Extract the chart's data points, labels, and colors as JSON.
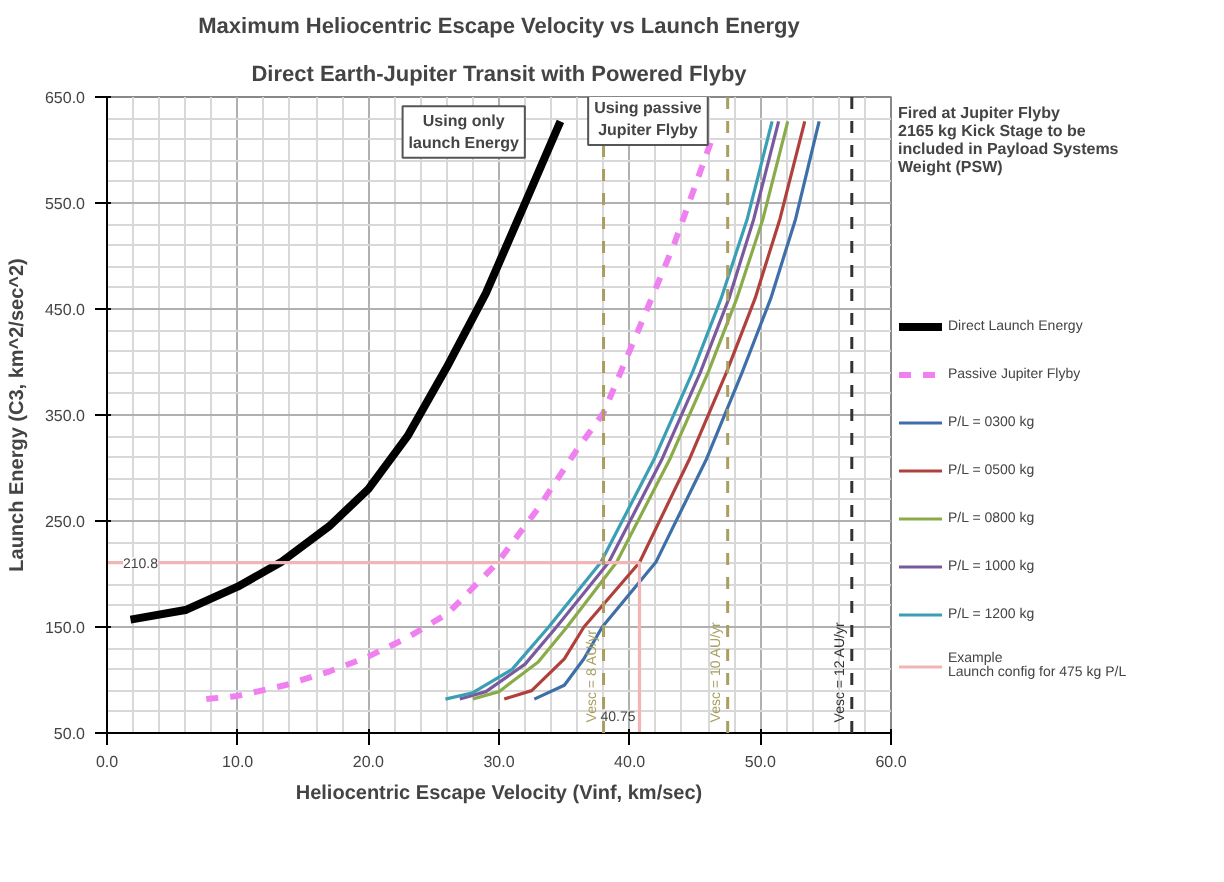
{
  "chart_data": {
    "type": "line",
    "title": "Maximum Heliocentric Escape Velocity vs Launch Energy",
    "subtitle": "Direct Earth-Jupiter Transit with Powered Flyby",
    "xlabel": "Heliocentric Escape Velocity (Vinf, km/sec)",
    "ylabel": "Launch Energy (C3, km^2/sec^2)",
    "xlim": [
      0,
      60
    ],
    "ylim": [
      50,
      650
    ],
    "xticks": [
      {
        "value": 0,
        "label": "0.0"
      },
      {
        "value": 10,
        "label": "10.0"
      },
      {
        "value": 20,
        "label": "20.0"
      },
      {
        "value": 30,
        "label": "30.0"
      },
      {
        "value": 40,
        "label": "40.0"
      },
      {
        "value": 50,
        "label": "50.0"
      },
      {
        "value": 60,
        "label": "60.0"
      }
    ],
    "yticks": [
      {
        "value": 50,
        "label": "50.0"
      },
      {
        "value": 150,
        "label": "150.0"
      },
      {
        "value": 250,
        "label": "250.0"
      },
      {
        "value": 350,
        "label": "350.0"
      },
      {
        "value": 450,
        "label": "450.0"
      },
      {
        "value": 550,
        "label": "550.0"
      },
      {
        "value": 650,
        "label": "650.0"
      }
    ],
    "grid": true,
    "legend": "right",
    "series": [
      {
        "name": "Direct Launch Energy",
        "color": "#000000",
        "x": [
          1.8,
          6,
          10,
          13.3,
          17,
          20,
          23,
          26,
          29,
          32,
          34.7
        ],
        "values": [
          157,
          166,
          188,
          211,
          245,
          280,
          330,
          395,
          465,
          550,
          627
        ]
      },
      {
        "name": "Passive Jupiter Flyby",
        "color": "#f080f0",
        "line_style": "dashed",
        "x": [
          7.6,
          10,
          13.6,
          17,
          19.8,
          23,
          26.1,
          29.9,
          33,
          36,
          38,
          41,
          43.4,
          46.2
        ],
        "values": [
          82,
          85,
          95,
          108,
          121,
          140,
          163,
          211,
          262,
          318,
          352,
          440,
          511,
          607
        ]
      },
      {
        "name": "P/L = 0300 kg",
        "color": "#3e6fa8",
        "x": [
          32.7,
          35,
          36.5,
          37.9,
          42.0,
          45.9,
          48.6,
          50.8,
          52.7,
          54.5
        ],
        "values": [
          82,
          95,
          120,
          150,
          211,
          309,
          390,
          460,
          535,
          627
        ]
      },
      {
        "name": "P/L = 0500 kg",
        "color": "#b0403c",
        "x": [
          30.4,
          32.5,
          35,
          36.5,
          40.75,
          44.6,
          47.4,
          49.6,
          51.5,
          53.4
        ],
        "values": [
          82,
          90,
          120,
          150,
          210.8,
          309,
          390,
          460,
          535,
          627
        ]
      },
      {
        "name": "P/L = 0800 kg",
        "color": "#8aab4a",
        "x": [
          28.0,
          30,
          33,
          35.2,
          39.0,
          43.1,
          46.0,
          48.2,
          50.2,
          52.1
        ],
        "values": [
          82,
          89,
          117,
          150,
          211,
          309,
          390,
          460,
          535,
          627
        ]
      },
      {
        "name": "P/L = 1000 kg",
        "color": "#7a5a9e",
        "x": [
          27.0,
          29,
          32,
          34.4,
          38.4,
          42.5,
          45.4,
          47.6,
          49.5,
          51.4
        ],
        "values": [
          82,
          89,
          115,
          150,
          211,
          309,
          390,
          460,
          535,
          627
        ]
      },
      {
        "name": "P/L = 1200 kg",
        "color": "#3a9fb5",
        "x": [
          25.9,
          28,
          31,
          33.8,
          37.8,
          41.9,
          44.8,
          47,
          49,
          50.9
        ],
        "values": [
          82,
          88,
          110,
          150,
          211,
          309,
          390,
          460,
          535,
          627
        ]
      },
      {
        "name": "Example\nLaunch config for 475 kg P/L",
        "color": "#f2b5b5",
        "x": [
          0,
          40.75,
          40.75
        ],
        "values": [
          210.8,
          210.8,
          50
        ]
      }
    ],
    "ref_lines": [
      {
        "axis": "x",
        "value": 38,
        "color": "#a89f60",
        "line_style": "dashed"
      },
      {
        "axis": "x",
        "value": 47.5,
        "color": "#a89f60",
        "line_style": "dashed"
      },
      {
        "axis": "x",
        "value": 57,
        "color": "#333333",
        "line_style": "dashed"
      }
    ],
    "annotations": [
      "Using only\nlaunch Energy",
      "Using passive\nJupiter Flyby",
      {
        "text": "210.8",
        "x": 0,
        "y": 210.8
      },
      {
        "text": "40.75",
        "x": 40.75,
        "y": 50
      },
      {
        "text": "Vesc = 8 AU/yr",
        "x": 38,
        "y": 60
      },
      {
        "text": "Vesc = 10 AU/yr",
        "x": 47.5,
        "y": 60
      },
      {
        "text": "Vesc = 12 AU/yr",
        "x": 57,
        "y": 60
      },
      "Fired at Jupiter Flyby\n2165 kg Kick Stage to be\nincluded in Payload Systems\nWeight (PSW)"
    ]
  }
}
